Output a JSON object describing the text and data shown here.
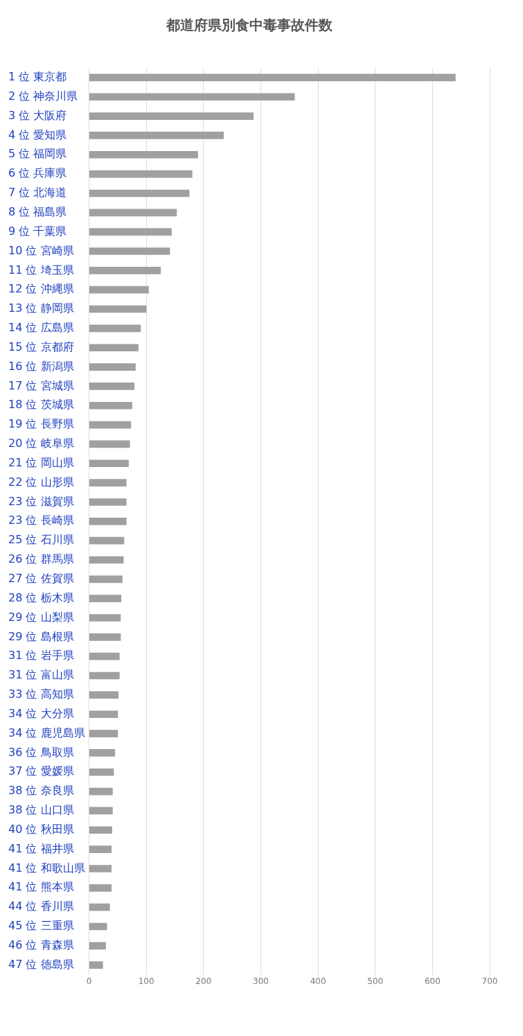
{
  "chart_data": {
    "type": "bar",
    "orientation": "horizontal",
    "title": "都道府県別食中毒事故件数",
    "categories": [
      "1 位 東京都",
      "2 位 神奈川県",
      "3 位 大阪府",
      "4 位 愛知県",
      "5 位 福岡県",
      "6 位 兵庫県",
      "7 位 北海道",
      "8 位 福島県",
      "9 位 千葉県",
      "10 位 宮崎県",
      "11 位 埼玉県",
      "12 位 沖縄県",
      "13 位 静岡県",
      "14 位 広島県",
      "15 位 京都府",
      "16 位 新潟県",
      "17 位 宮城県",
      "18 位 茨城県",
      "19 位 長野県",
      "20 位 岐阜県",
      "21 位 岡山県",
      "22 位 山形県",
      "23 位 滋賀県",
      "23 位 長崎県",
      "25 位 石川県",
      "26 位 群馬県",
      "27 位 佐賀県",
      "28 位 栃木県",
      "29 位 山梨県",
      "29 位 島根県",
      "31 位 岩手県",
      "31 位 富山県",
      "33 位 高知県",
      "34 位 大分県",
      "34 位 鹿児島県",
      "36 位 鳥取県",
      "37 位 愛媛県",
      "38 位 奈良県",
      "38 位 山口県",
      "40 位 秋田県",
      "41 位 福井県",
      "41 位 和歌山県",
      "41 位 熊本県",
      "44 位 香川県",
      "45 位 三重県",
      "46 位 青森県",
      "47 位 徳島県"
    ],
    "values": [
      640,
      359,
      287,
      235,
      190,
      180,
      175,
      153,
      144,
      141,
      125,
      104,
      100,
      90,
      86,
      81,
      79,
      75,
      73,
      71,
      69,
      65,
      65,
      65,
      61,
      60,
      58,
      56,
      55,
      55,
      53,
      53,
      51,
      50,
      50,
      45,
      43,
      41,
      41,
      40,
      39,
      39,
      39,
      36,
      31,
      29,
      24
    ],
    "color": "#a0a0a0",
    "xlim": [
      0,
      700
    ],
    "xticks": [
      0,
      100,
      200,
      300,
      400,
      500,
      600,
      700
    ],
    "grid": "x",
    "legend": false
  }
}
